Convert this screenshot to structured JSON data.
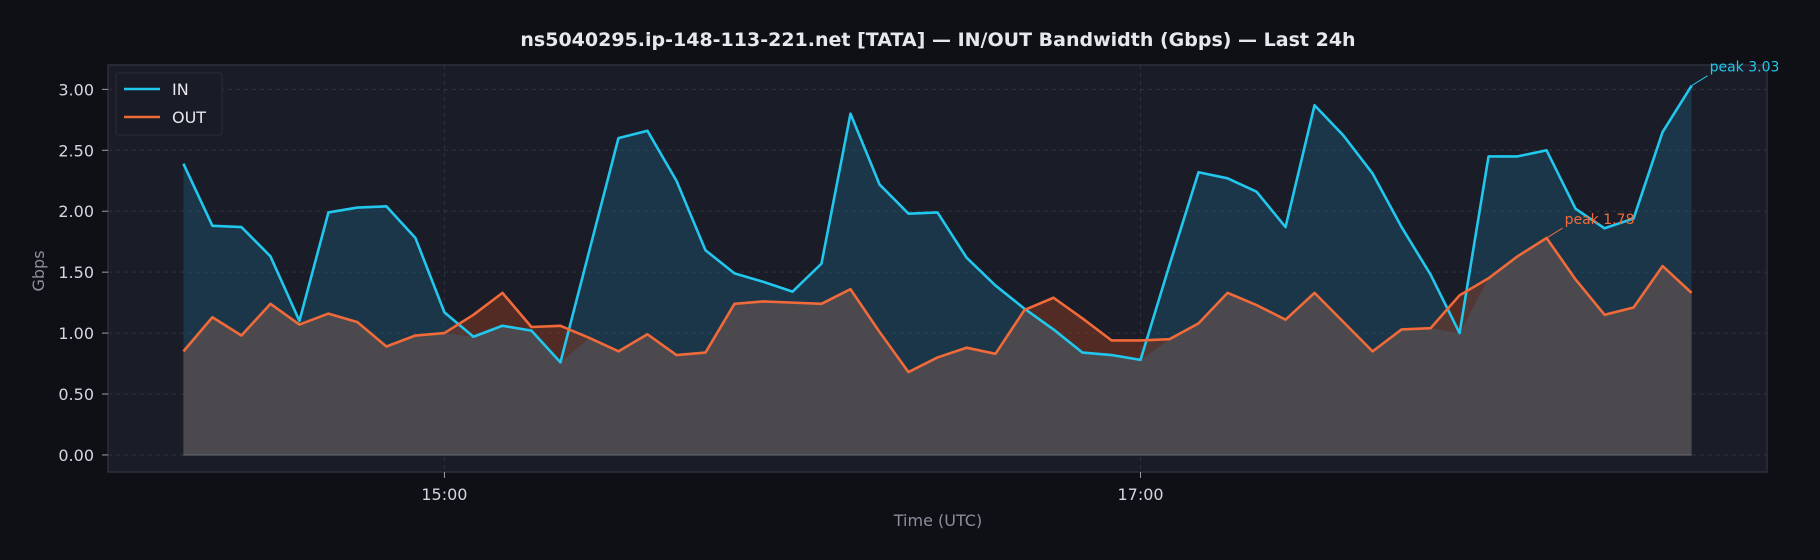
{
  "chart_data": {
    "type": "line",
    "title": "ns5040295.ip-148-113-221.net [TATA] — IN/OUT Bandwidth (Gbps) — Last 24h",
    "xlabel": "Time (UTC)",
    "ylabel": "Gbps",
    "ylim": [
      -0.14,
      3.2
    ],
    "y_ticks": [
      "0.00",
      "0.50",
      "1.00",
      "1.50",
      "2.00",
      "2.50",
      "3.00"
    ],
    "x_ticks": [
      {
        "label": "15:00",
        "x": 9
      },
      {
        "label": "17:00",
        "x": 33
      }
    ],
    "xlim": [
      -2.6,
      54.6
    ],
    "grid": true,
    "legend_position": "top-left",
    "x": [
      0,
      1,
      2,
      3,
      4,
      5,
      6,
      7,
      8,
      9,
      10,
      11,
      12,
      13,
      14,
      15,
      16,
      17,
      18,
      19,
      20,
      21,
      22,
      23,
      24,
      25,
      26,
      27,
      28,
      29,
      30,
      31,
      32,
      33,
      34,
      35,
      36,
      37,
      38,
      39,
      40,
      41,
      42,
      43,
      44,
      45,
      46,
      47,
      48,
      49,
      50,
      51,
      52
    ],
    "series": [
      {
        "name": "IN",
        "color": "#22c7ee",
        "values": [
          2.39,
          1.88,
          1.87,
          1.63,
          1.1,
          1.99,
          2.03,
          2.04,
          1.78,
          1.17,
          0.97,
          1.06,
          1.02,
          0.76,
          1.68,
          2.6,
          2.66,
          2.25,
          1.68,
          1.49,
          1.42,
          1.34,
          1.57,
          2.8,
          2.22,
          1.98,
          1.99,
          1.62,
          1.39,
          1.2,
          1.03,
          0.84,
          0.82,
          0.78,
          1.56,
          2.32,
          2.27,
          2.16,
          1.87,
          2.87,
          2.62,
          2.31,
          1.87,
          1.48,
          1.0,
          2.45,
          2.45,
          2.5,
          2.02,
          1.86,
          1.94,
          2.65,
          3.03
        ]
      },
      {
        "name": "OUT",
        "color": "#f06a3a",
        "values": [
          0.85,
          1.13,
          0.98,
          1.24,
          1.07,
          1.16,
          1.09,
          0.89,
          0.98,
          1.0,
          1.15,
          1.33,
          1.05,
          1.06,
          0.96,
          0.85,
          0.99,
          0.82,
          0.84,
          1.24,
          1.26,
          1.25,
          1.24,
          1.36,
          1.01,
          0.68,
          0.8,
          0.88,
          0.83,
          1.19,
          1.29,
          1.12,
          0.94,
          0.94,
          0.95,
          1.08,
          1.33,
          1.23,
          1.11,
          1.33,
          1.09,
          0.85,
          1.03,
          1.04,
          1.31,
          1.45,
          1.63,
          1.78,
          1.44,
          1.15,
          1.21,
          1.55,
          1.33
        ]
      }
    ],
    "annotations": [
      {
        "text": "peak 3.03",
        "series": "IN",
        "x": 52,
        "y": 3.03,
        "color": "#22c7ee"
      },
      {
        "text": "peak 1.78",
        "series": "OUT",
        "x": 47,
        "y": 1.78,
        "color": "#f06a3a"
      }
    ]
  }
}
